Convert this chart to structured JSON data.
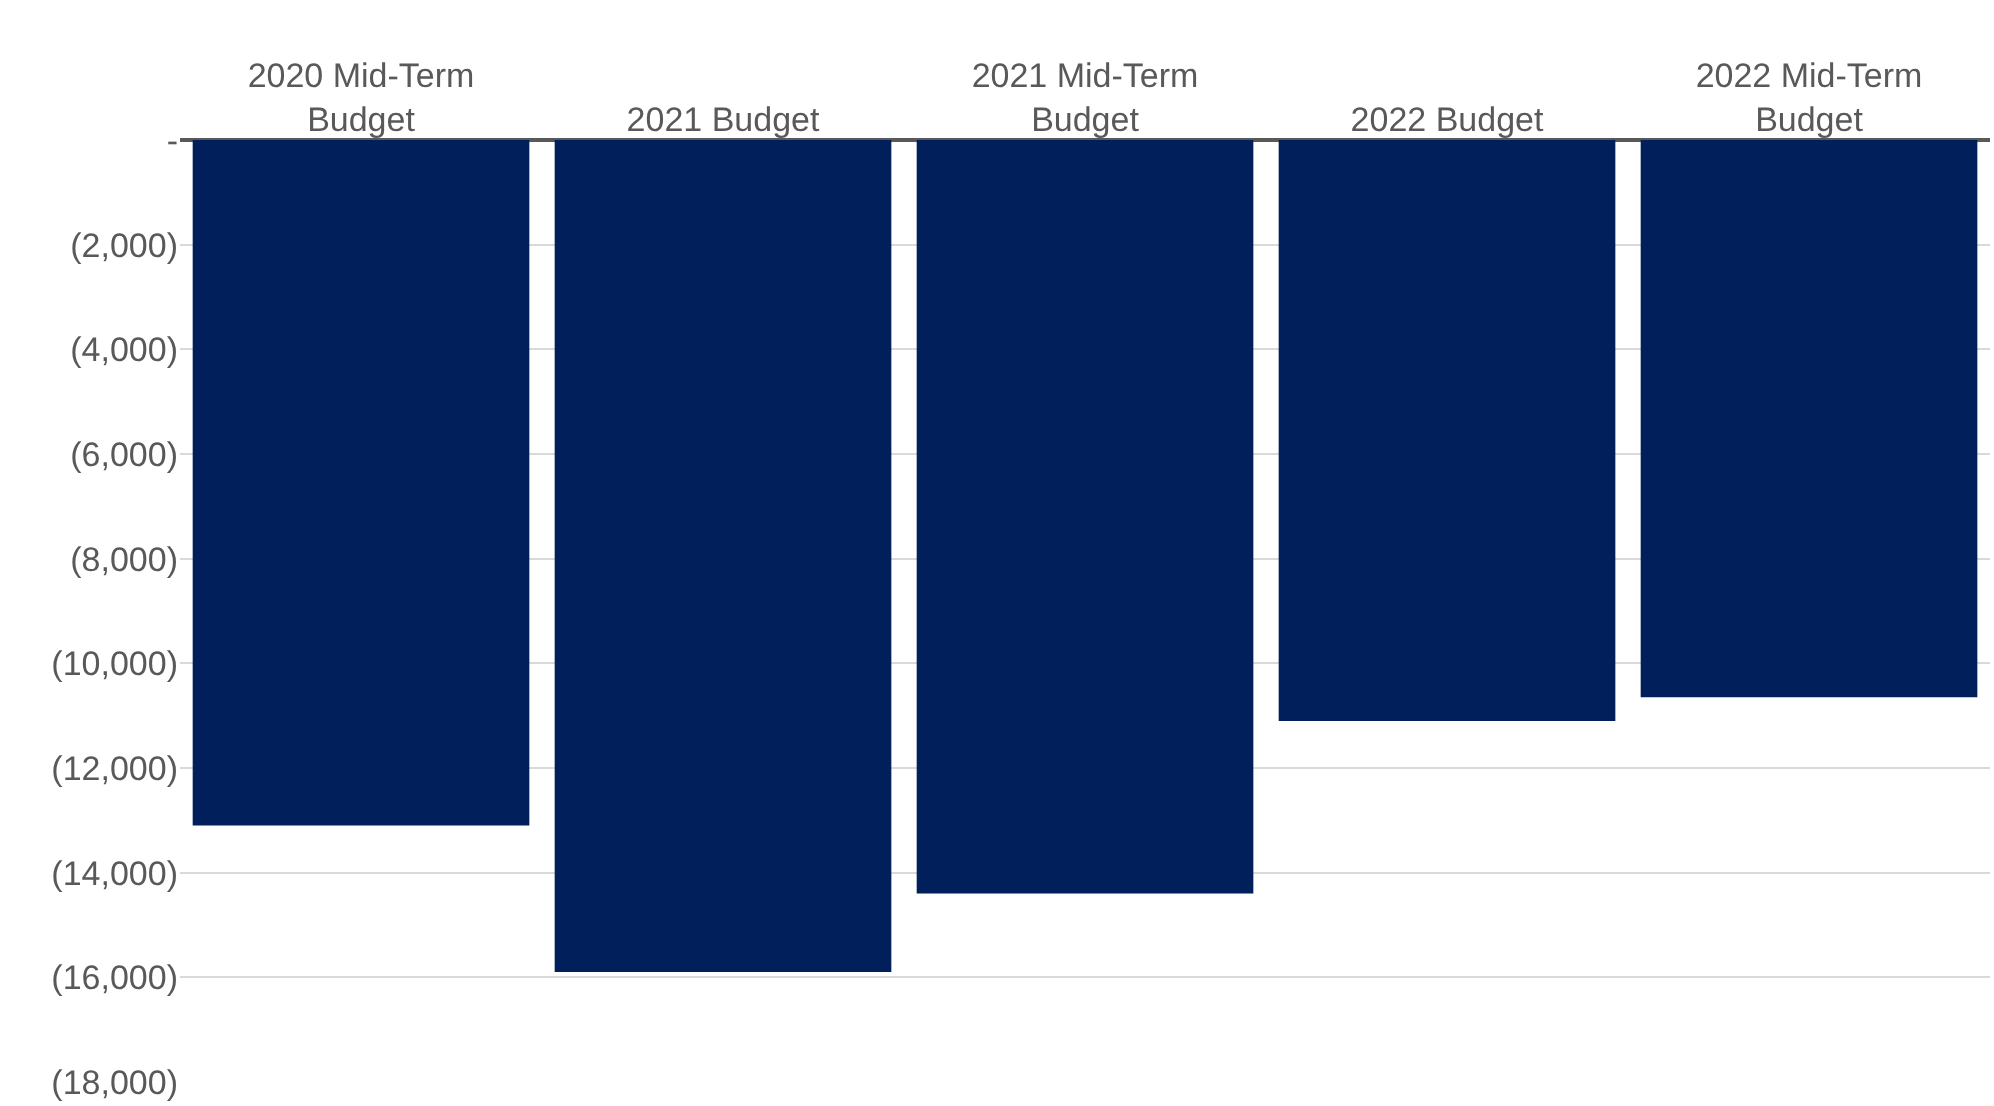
{
  "chart_data": {
    "type": "bar",
    "categories": [
      "2020 Mid-Term Budget",
      "2021 Budget",
      "2021 Mid-Term Budget",
      "2022 Budget",
      "2022 Mid-Term Budget"
    ],
    "values": [
      -13100,
      -15900,
      -14400,
      -11100,
      -10650
    ],
    "color": "#001f5b",
    "ylim": [
      -18000,
      0
    ],
    "yticks": [
      {
        "value": 0,
        "label": "-"
      },
      {
        "value": -2000,
        "label": "(2,000)"
      },
      {
        "value": -4000,
        "label": "(4,000)"
      },
      {
        "value": -6000,
        "label": "(6,000)"
      },
      {
        "value": -8000,
        "label": "(8,000)"
      },
      {
        "value": -10000,
        "label": "(10,000)"
      },
      {
        "value": -12000,
        "label": "(12,000)"
      },
      {
        "value": -14000,
        "label": "(14,000)"
      },
      {
        "value": -16000,
        "label": "(16,000)"
      },
      {
        "value": -18000,
        "label": "(18,000)"
      }
    ],
    "grid": "y",
    "legend": false
  }
}
